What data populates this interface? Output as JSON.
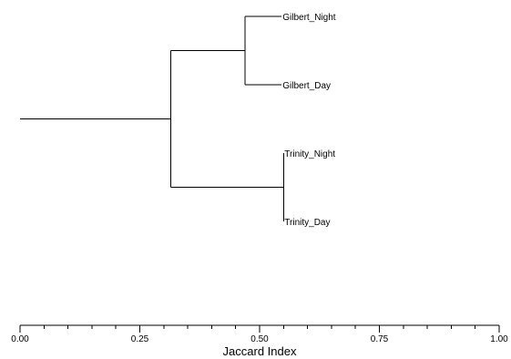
{
  "chart_data": {
    "type": "dendrogram",
    "xlabel": "Jaccard Index",
    "xlim": [
      0,
      1
    ],
    "ticks": [
      {
        "value": 0.0,
        "label": "0.00"
      },
      {
        "value": 0.25,
        "label": "0.25"
      },
      {
        "value": 0.5,
        "label": "0.50"
      },
      {
        "value": 0.75,
        "label": "0.75"
      },
      {
        "value": 1.0,
        "label": "1.00"
      }
    ],
    "minor_tick_step": 0.05,
    "leaves": [
      {
        "id": "gn",
        "label": "Gilbert_Night"
      },
      {
        "id": "gd",
        "label": "Gilbert_Day"
      },
      {
        "id": "tn",
        "label": "Trinity_Night"
      },
      {
        "id": "td",
        "label": "Trinity_Day"
      }
    ],
    "merges": [
      {
        "id": "g",
        "children": [
          "gn",
          "gd"
        ],
        "height": 0.47
      },
      {
        "id": "t",
        "children": [
          "tn",
          "td"
        ],
        "height": 0.55
      },
      {
        "id": "root",
        "children": [
          "g",
          "t"
        ],
        "height": 0.315
      }
    ],
    "root_stem_start": 0.0,
    "grid": false
  }
}
